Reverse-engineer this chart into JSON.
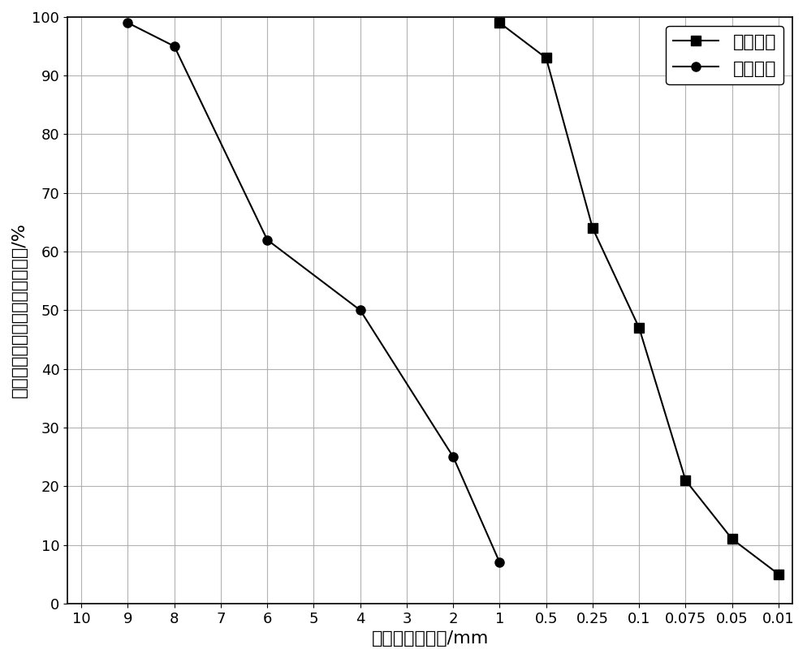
{
  "x_ticks_labels": [
    "10",
    "9",
    "8",
    "7",
    "6",
    "5",
    "4",
    "3",
    "2",
    "1",
    "0.5",
    "0.25",
    "0.1",
    "0.075",
    "0.05",
    "0.01"
  ],
  "x_ticks_values": [
    10,
    9,
    8,
    7,
    6,
    5,
    4,
    3,
    2,
    1,
    0.5,
    0.25,
    0.1,
    0.075,
    0.05,
    0.01
  ],
  "series1_name": "筛分试验",
  "series2_name": "数値试验",
  "series1_x": [
    1,
    0.5,
    0.25,
    0.1,
    0.075,
    0.05,
    0.01
  ],
  "series1_y": [
    99,
    93,
    64,
    47,
    21,
    11,
    5
  ],
  "series2_x": [
    9,
    8,
    6,
    4,
    2,
    1
  ],
  "series2_y": [
    99,
    95,
    62,
    50,
    25,
    7
  ],
  "ylabel": "小于某粒径的尾矿砂质量百分数/%",
  "xlabel": "尾矿砂额粒直径/mm",
  "ylim": [
    0,
    100
  ],
  "yticks": [
    0,
    10,
    20,
    30,
    40,
    50,
    60,
    70,
    80,
    90,
    100
  ],
  "line_color": "#000000",
  "marker1": "s",
  "marker2": "o",
  "marker_size": 8,
  "line_width": 1.5,
  "grid_color": "#aaaaaa",
  "background_color": "#ffffff",
  "legend_fontsize": 16,
  "axis_fontsize": 16,
  "tick_fontsize": 13
}
